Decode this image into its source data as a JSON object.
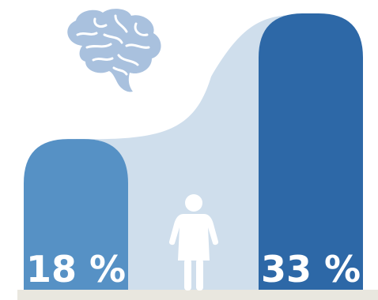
{
  "chart_data": {
    "type": "bar",
    "categories": [
      "",
      ""
    ],
    "values": [
      18,
      33
    ],
    "value_labels": [
      "18 %",
      "33 %"
    ],
    "unit": "%",
    "ylim": [
      0,
      33
    ],
    "grid": false,
    "legend": "none",
    "title": "",
    "xlabel": "",
    "ylabel": ""
  },
  "colors": {
    "bar_left": "#5691c5",
    "bar_right": "#2d68a7",
    "connector_area": "#cfdeec",
    "icon_brain": "#a9c1de",
    "icon_woman": "#ffffff",
    "baseline": "#e9e7df"
  },
  "icons": {
    "top": "brain-icon",
    "middle": "woman-icon"
  }
}
